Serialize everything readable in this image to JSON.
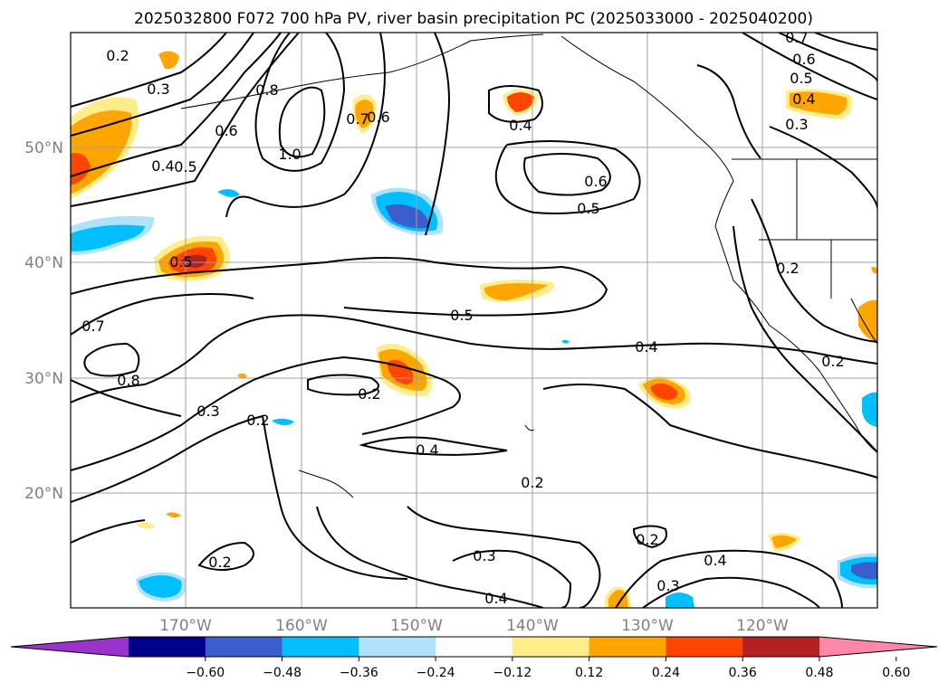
{
  "title": "2025032800 F072 700 hPa PV, river basin precipitation PC (2025033000 - 2025040200)",
  "map": {
    "lat_ticks": [
      "50°N",
      "40°N",
      "30°N",
      "20°N"
    ],
    "lon_ticks": [
      "170°W",
      "160°W",
      "150°W",
      "140°W",
      "130°W",
      "120°W"
    ],
    "gridlines": true,
    "contour_labels": [
      "0.2",
      "0.3",
      "0.6",
      "0.8",
      "0.7",
      "0.6",
      "1.0",
      "0.4",
      "0.5",
      "0.4",
      "0.6",
      "0.5",
      "0.7",
      "0.6",
      "0.5",
      "0.4",
      "0.3",
      "0.5",
      "0.5",
      "0.2",
      "0.7",
      "0.8",
      "0.4",
      "0.3",
      "0.2",
      "0.2",
      "0.4",
      "0.2",
      "0.3",
      "0.2",
      "0.4",
      "0.2",
      "0.3",
      "0.2",
      "0.4"
    ]
  },
  "colorbar": {
    "tick_labels": [
      "−0.60",
      "−0.48",
      "−0.36",
      "−0.24",
      "−0.12",
      "0.12",
      "0.24",
      "0.36",
      "0.48",
      "0.60"
    ],
    "colors": [
      "#9933cc",
      "#00008b",
      "#3a5fcd",
      "#00bfff",
      "#b0e2ff",
      "#ffffff",
      "#ffec8b",
      "#ffa500",
      "#ff4500",
      "#b22222",
      "#ff88aa"
    ]
  }
}
